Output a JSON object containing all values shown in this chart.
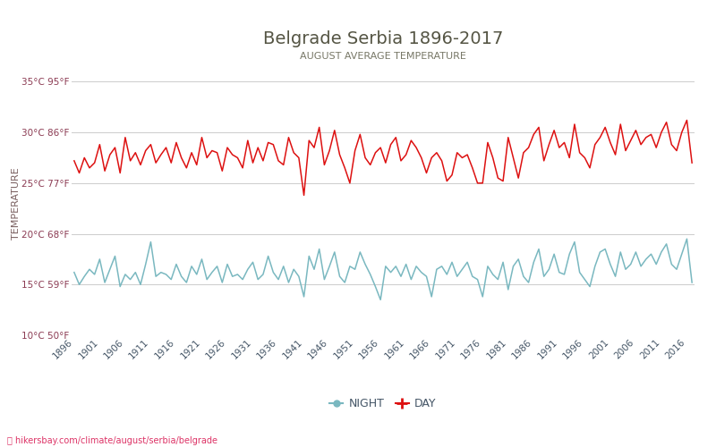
{
  "title": "Belgrade Serbia 1896-2017",
  "subtitle": "AUGUST AVERAGE TEMPERATURE",
  "ylabel": "TEMPERATURE",
  "xlabel_url": "hikersbay.com/climate/august/serbia/belgrade",
  "title_color": "#555544",
  "subtitle_color": "#777766",
  "background_color": "#ffffff",
  "grid_color": "#cccccc",
  "day_color": "#dd1111",
  "night_color": "#7ab8c0",
  "ylim": [
    10,
    36
  ],
  "yticks_c": [
    10,
    15,
    20,
    25,
    30,
    35
  ],
  "ytick_labels": [
    "10°C 50°F",
    "15°C 59°F",
    "20°C 68°F",
    "25°C 77°F",
    "30°C 86°F",
    "35°C 95°F"
  ],
  "legend_night": "NIGHT",
  "legend_day": "DAY",
  "years": [
    1896,
    1897,
    1898,
    1899,
    1900,
    1901,
    1902,
    1903,
    1904,
    1905,
    1906,
    1907,
    1908,
    1909,
    1910,
    1911,
    1912,
    1913,
    1914,
    1915,
    1916,
    1917,
    1918,
    1919,
    1920,
    1921,
    1922,
    1923,
    1924,
    1925,
    1926,
    1927,
    1928,
    1929,
    1930,
    1931,
    1932,
    1933,
    1934,
    1935,
    1936,
    1937,
    1938,
    1939,
    1940,
    1941,
    1942,
    1943,
    1944,
    1945,
    1946,
    1947,
    1948,
    1949,
    1950,
    1951,
    1952,
    1953,
    1954,
    1955,
    1956,
    1957,
    1958,
    1959,
    1960,
    1961,
    1962,
    1963,
    1964,
    1965,
    1966,
    1967,
    1968,
    1969,
    1970,
    1971,
    1972,
    1973,
    1974,
    1975,
    1976,
    1977,
    1978,
    1979,
    1980,
    1981,
    1982,
    1983,
    1984,
    1985,
    1986,
    1987,
    1988,
    1989,
    1990,
    1991,
    1992,
    1993,
    1994,
    1995,
    1996,
    1997,
    1998,
    1999,
    2000,
    2001,
    2002,
    2003,
    2004,
    2005,
    2006,
    2007,
    2008,
    2009,
    2010,
    2011,
    2012,
    2013,
    2014,
    2015,
    2016,
    2017
  ],
  "day_temps": [
    27.2,
    26.0,
    27.5,
    26.5,
    27.0,
    28.8,
    26.2,
    27.8,
    28.5,
    26.0,
    29.5,
    27.2,
    28.0,
    26.8,
    28.2,
    28.8,
    27.0,
    27.8,
    28.5,
    27.0,
    29.0,
    27.5,
    26.5,
    28.0,
    26.8,
    29.5,
    27.5,
    28.2,
    28.0,
    26.2,
    28.5,
    27.8,
    27.5,
    26.5,
    29.2,
    27.0,
    28.5,
    27.2,
    29.0,
    28.8,
    27.2,
    26.8,
    29.5,
    28.0,
    27.5,
    23.8,
    29.2,
    28.5,
    30.5,
    26.8,
    28.2,
    30.2,
    27.8,
    26.5,
    25.0,
    28.2,
    29.8,
    27.5,
    26.8,
    28.0,
    28.5,
    27.0,
    28.8,
    29.5,
    27.2,
    27.8,
    29.2,
    28.5,
    27.5,
    26.0,
    27.5,
    28.0,
    27.2,
    25.2,
    25.8,
    28.0,
    27.5,
    27.8,
    26.5,
    25.0,
    25.0,
    29.0,
    27.5,
    25.5,
    25.2,
    29.5,
    27.5,
    25.5,
    28.0,
    28.5,
    29.8,
    30.5,
    27.2,
    28.8,
    30.2,
    28.5,
    29.0,
    27.5,
    30.8,
    28.0,
    27.5,
    26.5,
    28.8,
    29.5,
    30.5,
    29.0,
    27.8,
    30.8,
    28.2,
    29.2,
    30.2,
    28.8,
    29.5,
    29.8,
    28.5,
    30.0,
    31.0,
    28.8,
    28.2,
    30.0,
    31.2,
    27.0
  ],
  "night_temps": [
    16.2,
    15.0,
    15.8,
    16.5,
    16.0,
    17.5,
    15.2,
    16.5,
    17.8,
    14.8,
    16.0,
    15.5,
    16.2,
    15.0,
    17.0,
    19.2,
    15.8,
    16.2,
    16.0,
    15.5,
    17.0,
    15.8,
    15.2,
    16.8,
    16.0,
    17.5,
    15.5,
    16.2,
    16.8,
    15.2,
    17.0,
    15.8,
    16.0,
    15.5,
    16.5,
    17.2,
    15.5,
    16.0,
    17.8,
    16.2,
    15.5,
    16.8,
    15.2,
    16.5,
    15.8,
    13.8,
    17.8,
    16.5,
    18.5,
    15.5,
    16.8,
    18.2,
    15.8,
    15.2,
    16.8,
    16.5,
    18.2,
    17.0,
    16.0,
    14.8,
    13.5,
    16.8,
    16.2,
    16.8,
    15.8,
    17.0,
    15.5,
    16.8,
    16.2,
    15.8,
    13.8,
    16.5,
    16.8,
    16.0,
    17.2,
    15.8,
    16.5,
    17.2,
    15.8,
    15.5,
    13.8,
    16.8,
    16.0,
    15.5,
    17.2,
    14.5,
    16.8,
    17.5,
    15.8,
    15.2,
    17.2,
    18.5,
    15.8,
    16.5,
    18.0,
    16.2,
    16.0,
    18.0,
    19.2,
    16.2,
    15.5,
    14.8,
    16.8,
    18.2,
    18.5,
    17.0,
    15.8,
    18.2,
    16.5,
    17.0,
    18.2,
    16.8,
    17.5,
    18.0,
    17.0,
    18.2,
    19.0,
    17.0,
    16.5,
    18.0,
    19.5,
    15.2
  ]
}
